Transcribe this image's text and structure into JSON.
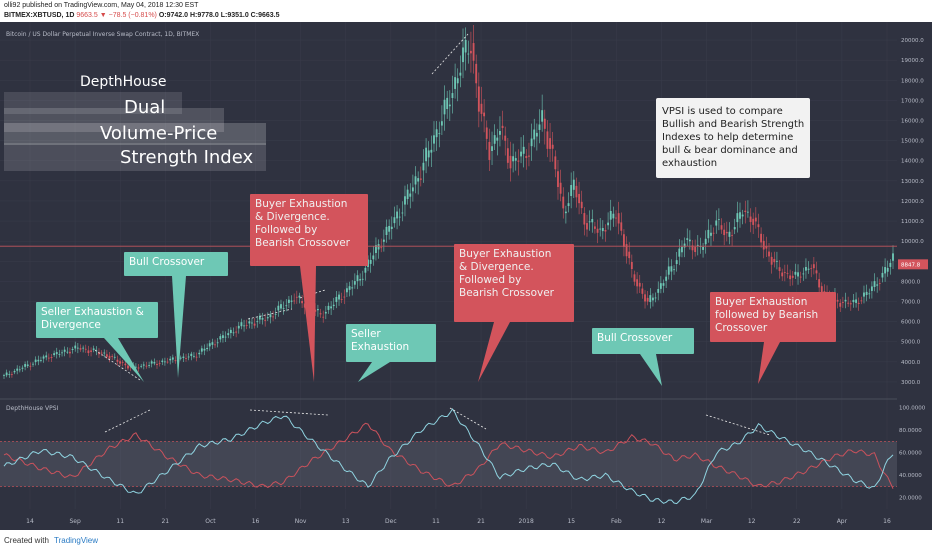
{
  "header": {
    "published": "olli92 published on TradingView.com, May 04, 2018 12:30 EST",
    "symbol": "BITMEX:XBTUSD, 1D",
    "last": "9663.5",
    "change": "−78.5 (−0.81%)",
    "ohlc": "O:9742.0 H:9778.0 L:9351.0 C:9663.5"
  },
  "footer": {
    "created_with": "Created with",
    "brand": "TradingView"
  },
  "colors": {
    "bull": "#6ec8b5",
    "bear": "#d3545c",
    "bg": "#2f3240",
    "price_line": "#c2555c",
    "vpsi_bull": "#8fd3e0",
    "vpsi_bear": "#c9525c"
  },
  "chart_data": [
    {
      "type": "candlestick",
      "title": "Bitcoin / US Dollar Perpetual Inverse Swap Contract, 1D, BITMEX",
      "ylim": [
        2500,
        20500
      ],
      "yticks": [
        3000,
        4000,
        5000,
        6000,
        7000,
        8000,
        9000,
        10000,
        11000,
        12000,
        13000,
        14000,
        15000,
        16000,
        17000,
        18000,
        19000,
        20000
      ],
      "last_price_tag": "8847.8",
      "x_ticks": [
        "14",
        "Sep",
        "11",
        "21",
        "Oct",
        "16",
        "Nov",
        "13",
        "Dec",
        "11",
        "21",
        "2018",
        "15",
        "Feb",
        "12",
        "Mar",
        "12",
        "22",
        "Apr",
        "16"
      ],
      "close_anchors": [
        [
          0,
          3300
        ],
        [
          15,
          4200
        ],
        [
          28,
          4700
        ],
        [
          38,
          4400
        ],
        [
          48,
          3700
        ],
        [
          60,
          4000
        ],
        [
          72,
          4300
        ],
        [
          80,
          5000
        ],
        [
          90,
          5800
        ],
        [
          100,
          6200
        ],
        [
          110,
          7200
        ],
        [
          115,
          6800
        ],
        [
          120,
          6300
        ],
        [
          128,
          7300
        ],
        [
          135,
          8200
        ],
        [
          142,
          9800
        ],
        [
          150,
          11500
        ],
        [
          158,
          13500
        ],
        [
          165,
          15800
        ],
        [
          170,
          17500
        ],
        [
          174,
          19200
        ],
        [
          177,
          19800
        ],
        [
          180,
          16800
        ],
        [
          184,
          14500
        ],
        [
          188,
          15600
        ],
        [
          192,
          13900
        ],
        [
          198,
          14400
        ],
        [
          204,
          16100
        ],
        [
          208,
          14200
        ],
        [
          212,
          11500
        ],
        [
          216,
          12800
        ],
        [
          220,
          11000
        ],
        [
          226,
          10500
        ],
        [
          232,
          11400
        ],
        [
          238,
          8400
        ],
        [
          244,
          6900
        ],
        [
          248,
          7600
        ],
        [
          254,
          8900
        ],
        [
          258,
          10000
        ],
        [
          264,
          9600
        ],
        [
          270,
          11000
        ],
        [
          274,
          10200
        ],
        [
          280,
          11500
        ],
        [
          284,
          11100
        ],
        [
          288,
          9700
        ],
        [
          294,
          8500
        ],
        [
          300,
          8200
        ],
        [
          306,
          8800
        ],
        [
          310,
          7500
        ],
        [
          316,
          7000
        ],
        [
          322,
          6900
        ],
        [
          328,
          7500
        ],
        [
          334,
          8500
        ],
        [
          337,
          9200
        ]
      ],
      "annotations": [
        {
          "text": "DepthHouse"
        },
        {
          "text": "Dual"
        },
        {
          "text": "Volume-Price"
        },
        {
          "text": "Strength Index"
        },
        {
          "text": "VPSI is used to compare Bullish and Bearish Strength Indexes to help determine bull & bear dominance and exhaustion"
        },
        {
          "text": "Seller Exhaustion & Divergence"
        },
        {
          "text": "Bull Crossover"
        },
        {
          "text": "Buyer Exhaustion & Divergence. Followed by Bearish Crossover"
        },
        {
          "text": "Seller Exhaustion"
        },
        {
          "text": "Buyer Exhaustion & Divergence. Followed by Bearish Crossover"
        },
        {
          "text": "Bull Crossover"
        },
        {
          "text": "Buyer Exhaustion followed by Bearish Crossover"
        }
      ]
    },
    {
      "type": "line",
      "title": "DepthHouse VPSI",
      "ylim": [
        10,
        105
      ],
      "yticks": [
        20,
        40,
        60,
        80,
        100
      ],
      "ytick_labels": [
        "20.0000",
        "40.0000",
        "60.0000",
        "80.0000",
        "100.0000"
      ],
      "bands": [
        30,
        70
      ],
      "series": [
        {
          "values_anchors": [
            [
              0,
              48
            ],
            [
              14,
              62
            ],
            [
              26,
              56
            ],
            [
              40,
              36
            ],
            [
              50,
              23
            ],
            [
              62,
              44
            ],
            [
              74,
              66
            ],
            [
              86,
              72
            ],
            [
              98,
              86
            ],
            [
              106,
              93
            ],
            [
              116,
              72
            ],
            [
              128,
              48
            ],
            [
              138,
              30
            ],
            [
              146,
              54
            ],
            [
              158,
              80
            ],
            [
              170,
              97
            ],
            [
              180,
              66
            ],
            [
              188,
              38
            ],
            [
              198,
              46
            ],
            [
              208,
              50
            ],
            [
              218,
              36
            ],
            [
              228,
              40
            ],
            [
              238,
              26
            ],
            [
              246,
              18
            ],
            [
              254,
              16
            ],
            [
              262,
              22
            ],
            [
              270,
              60
            ],
            [
              278,
              68
            ],
            [
              286,
              84
            ],
            [
              294,
              74
            ],
            [
              304,
              62
            ],
            [
              314,
              48
            ],
            [
              322,
              36
            ],
            [
              330,
              28
            ],
            [
              334,
              48
            ],
            [
              337,
              60
            ]
          ]
        },
        {
          "values_anchors": [
            [
              0,
              58
            ],
            [
              14,
              46
            ],
            [
              26,
              38
            ],
            [
              40,
              64
            ],
            [
              50,
              76
            ],
            [
              62,
              56
            ],
            [
              74,
              40
            ],
            [
              86,
              36
            ],
            [
              98,
              30
            ],
            [
              106,
              34
            ],
            [
              116,
              52
            ],
            [
              128,
              70
            ],
            [
              138,
              86
            ],
            [
              146,
              63
            ],
            [
              158,
              44
            ],
            [
              170,
              30
            ],
            [
              180,
              46
            ],
            [
              188,
              68
            ],
            [
              198,
              62
            ],
            [
              208,
              56
            ],
            [
              218,
              66
            ],
            [
              228,
              60
            ],
            [
              238,
              74
            ],
            [
              246,
              68
            ],
            [
              254,
              54
            ],
            [
              262,
              58
            ],
            [
              270,
              48
            ],
            [
              278,
              40
            ],
            [
              286,
              30
            ],
            [
              294,
              34
            ],
            [
              304,
              44
            ],
            [
              314,
              56
            ],
            [
              322,
              62
            ],
            [
              330,
              58
            ],
            [
              334,
              40
            ],
            [
              337,
              30
            ]
          ]
        }
      ]
    }
  ]
}
